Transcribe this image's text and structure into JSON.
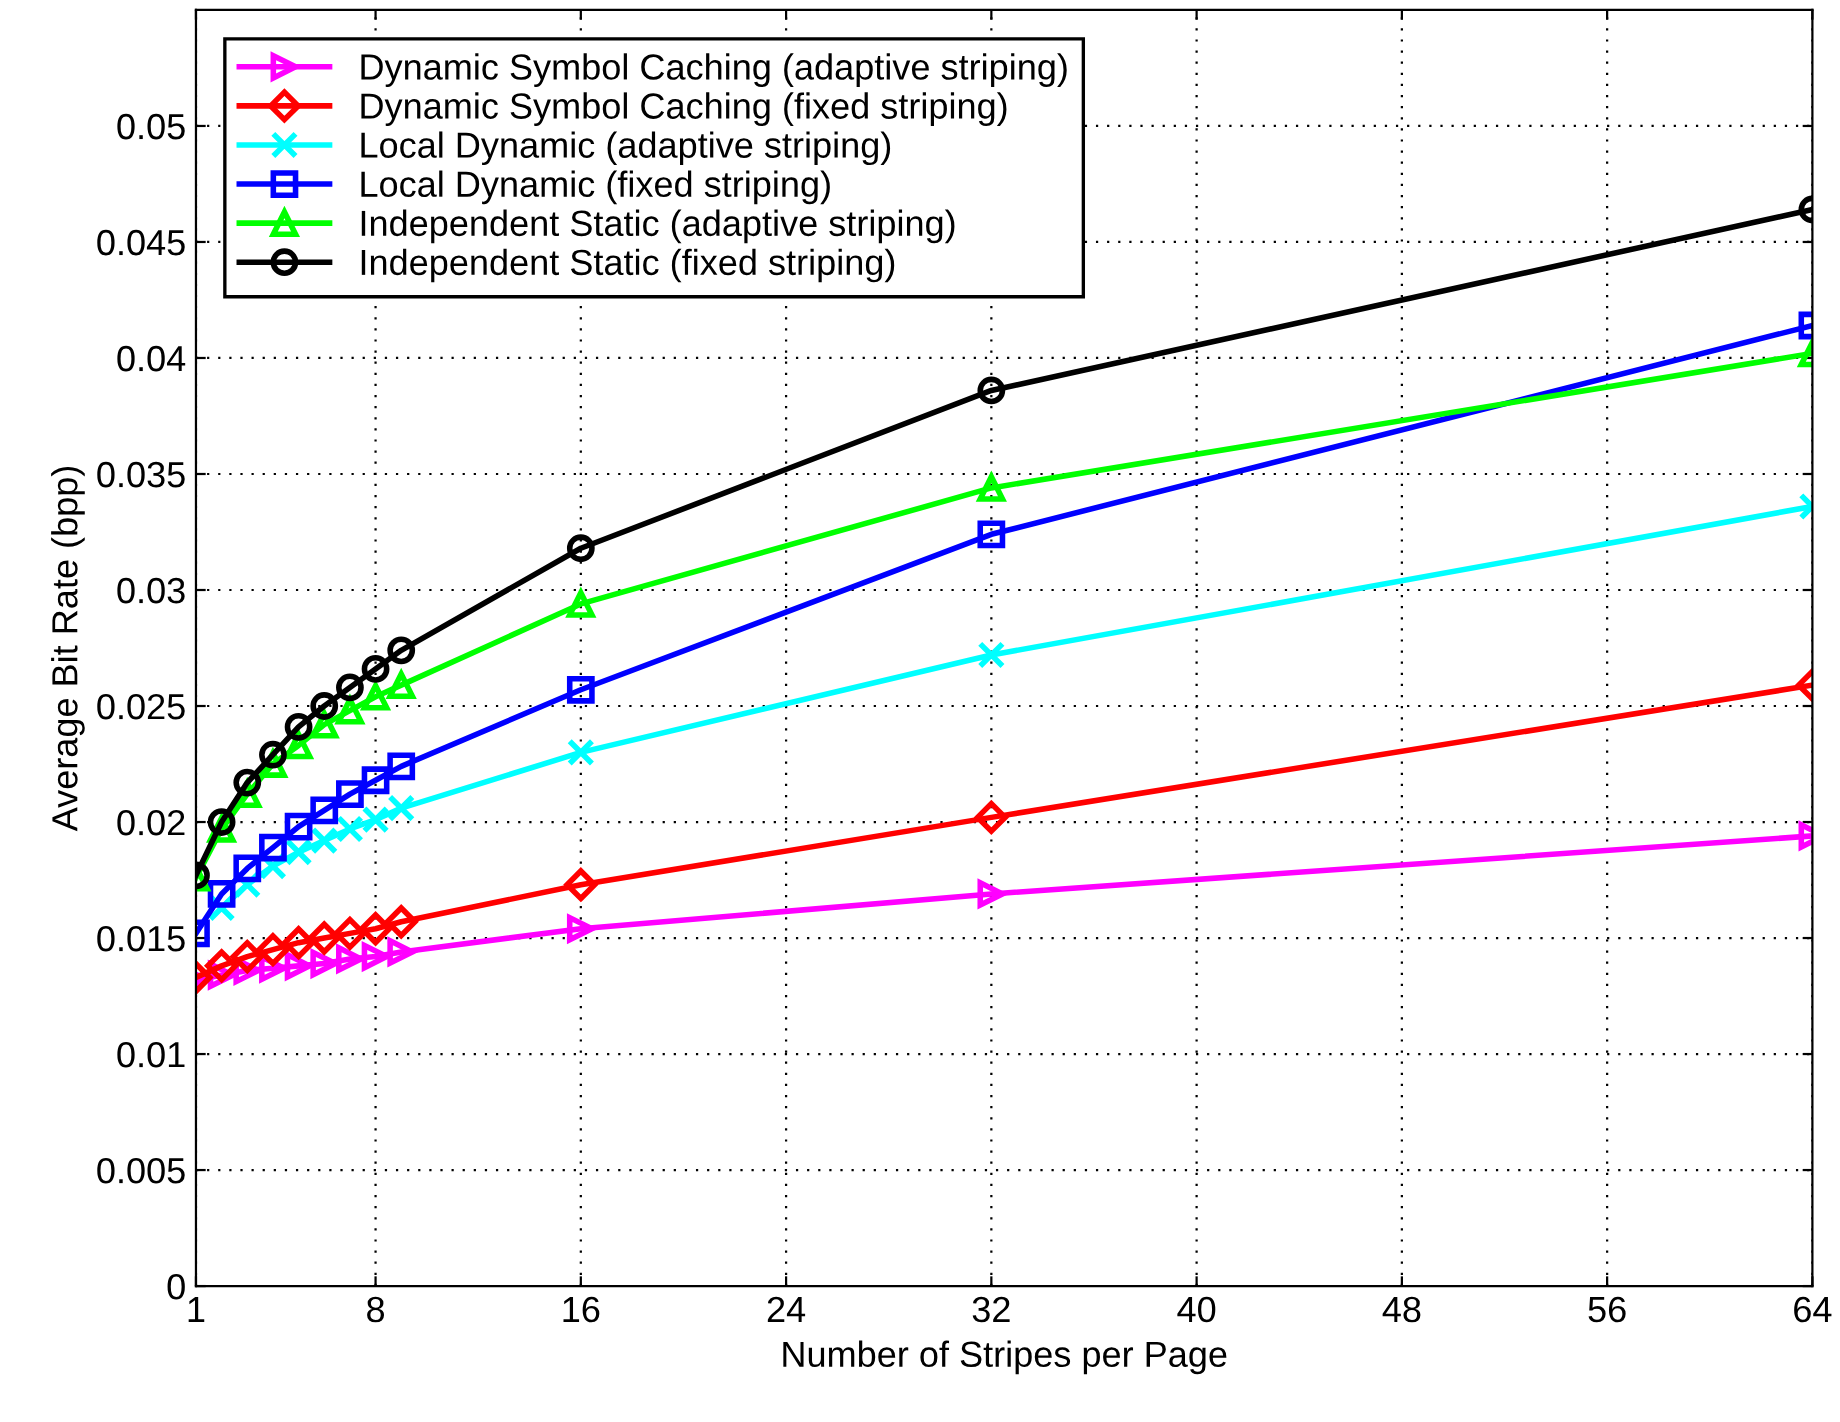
{
  "chart_data": {
    "type": "line",
    "xlabel": "Number of Stripes per Page",
    "ylabel": "Average Bit Rate (bpp)",
    "x": [
      1,
      2,
      3,
      4,
      5,
      6,
      7,
      8,
      9,
      16,
      32,
      64
    ],
    "series": [
      {
        "name": "Dynamic Symbol Caching (adaptive striping)",
        "color": "#ff00ff",
        "marker": "triangle-right",
        "values": [
          0.0132,
          0.0134,
          0.0136,
          0.0137,
          0.0138,
          0.0139,
          0.0141,
          0.0142,
          0.0144,
          0.0154,
          0.0169,
          0.0194
        ]
      },
      {
        "name": "Dynamic Symbol Caching (fixed striping)",
        "color": "#ff0000",
        "marker": "diamond",
        "values": [
          0.0133,
          0.0138,
          0.0142,
          0.0145,
          0.0148,
          0.015,
          0.0152,
          0.0154,
          0.0157,
          0.0173,
          0.0202,
          0.0259
        ]
      },
      {
        "name": "Local Dynamic (adaptive striping)",
        "color": "#00ffff",
        "marker": "cross",
        "values": [
          null,
          0.0163,
          0.0173,
          0.0181,
          0.0187,
          0.0192,
          0.0197,
          0.0201,
          0.0206,
          0.023,
          0.0272,
          0.0336
        ]
      },
      {
        "name": "Local Dynamic (fixed striping)",
        "color": "#0000ff",
        "marker": "square",
        "values": [
          0.0152,
          0.0169,
          0.018,
          0.0189,
          0.0198,
          0.0205,
          0.0212,
          0.0218,
          0.0224,
          0.0257,
          0.0324,
          0.0414
        ]
      },
      {
        "name": "Independent Static (adaptive striping)",
        "color": "#00ff00",
        "marker": "triangle",
        "values": [
          0.0176,
          0.0197,
          0.0212,
          0.0225,
          0.0233,
          0.0242,
          0.0248,
          0.0254,
          0.0259,
          0.0294,
          0.0344,
          0.0402
        ]
      },
      {
        "name": "Independent Static (fixed striping)",
        "color": "#000000",
        "marker": "circle",
        "values": [
          0.0177,
          0.02,
          0.0217,
          0.0229,
          0.0241,
          0.025,
          0.0258,
          0.0266,
          0.0274,
          0.0318,
          0.0386,
          0.0464
        ]
      }
    ],
    "xlim": [
      1,
      64
    ],
    "xticks": [
      1,
      8,
      16,
      24,
      32,
      40,
      48,
      56,
      64
    ],
    "ylim": [
      0,
      0.055
    ],
    "yticks": [
      0,
      0.005,
      0.01,
      0.015,
      0.02,
      0.025,
      0.03,
      0.035,
      0.04,
      0.045,
      0.05
    ],
    "grid": true,
    "legend": "top left",
    "line_style": "solid"
  }
}
